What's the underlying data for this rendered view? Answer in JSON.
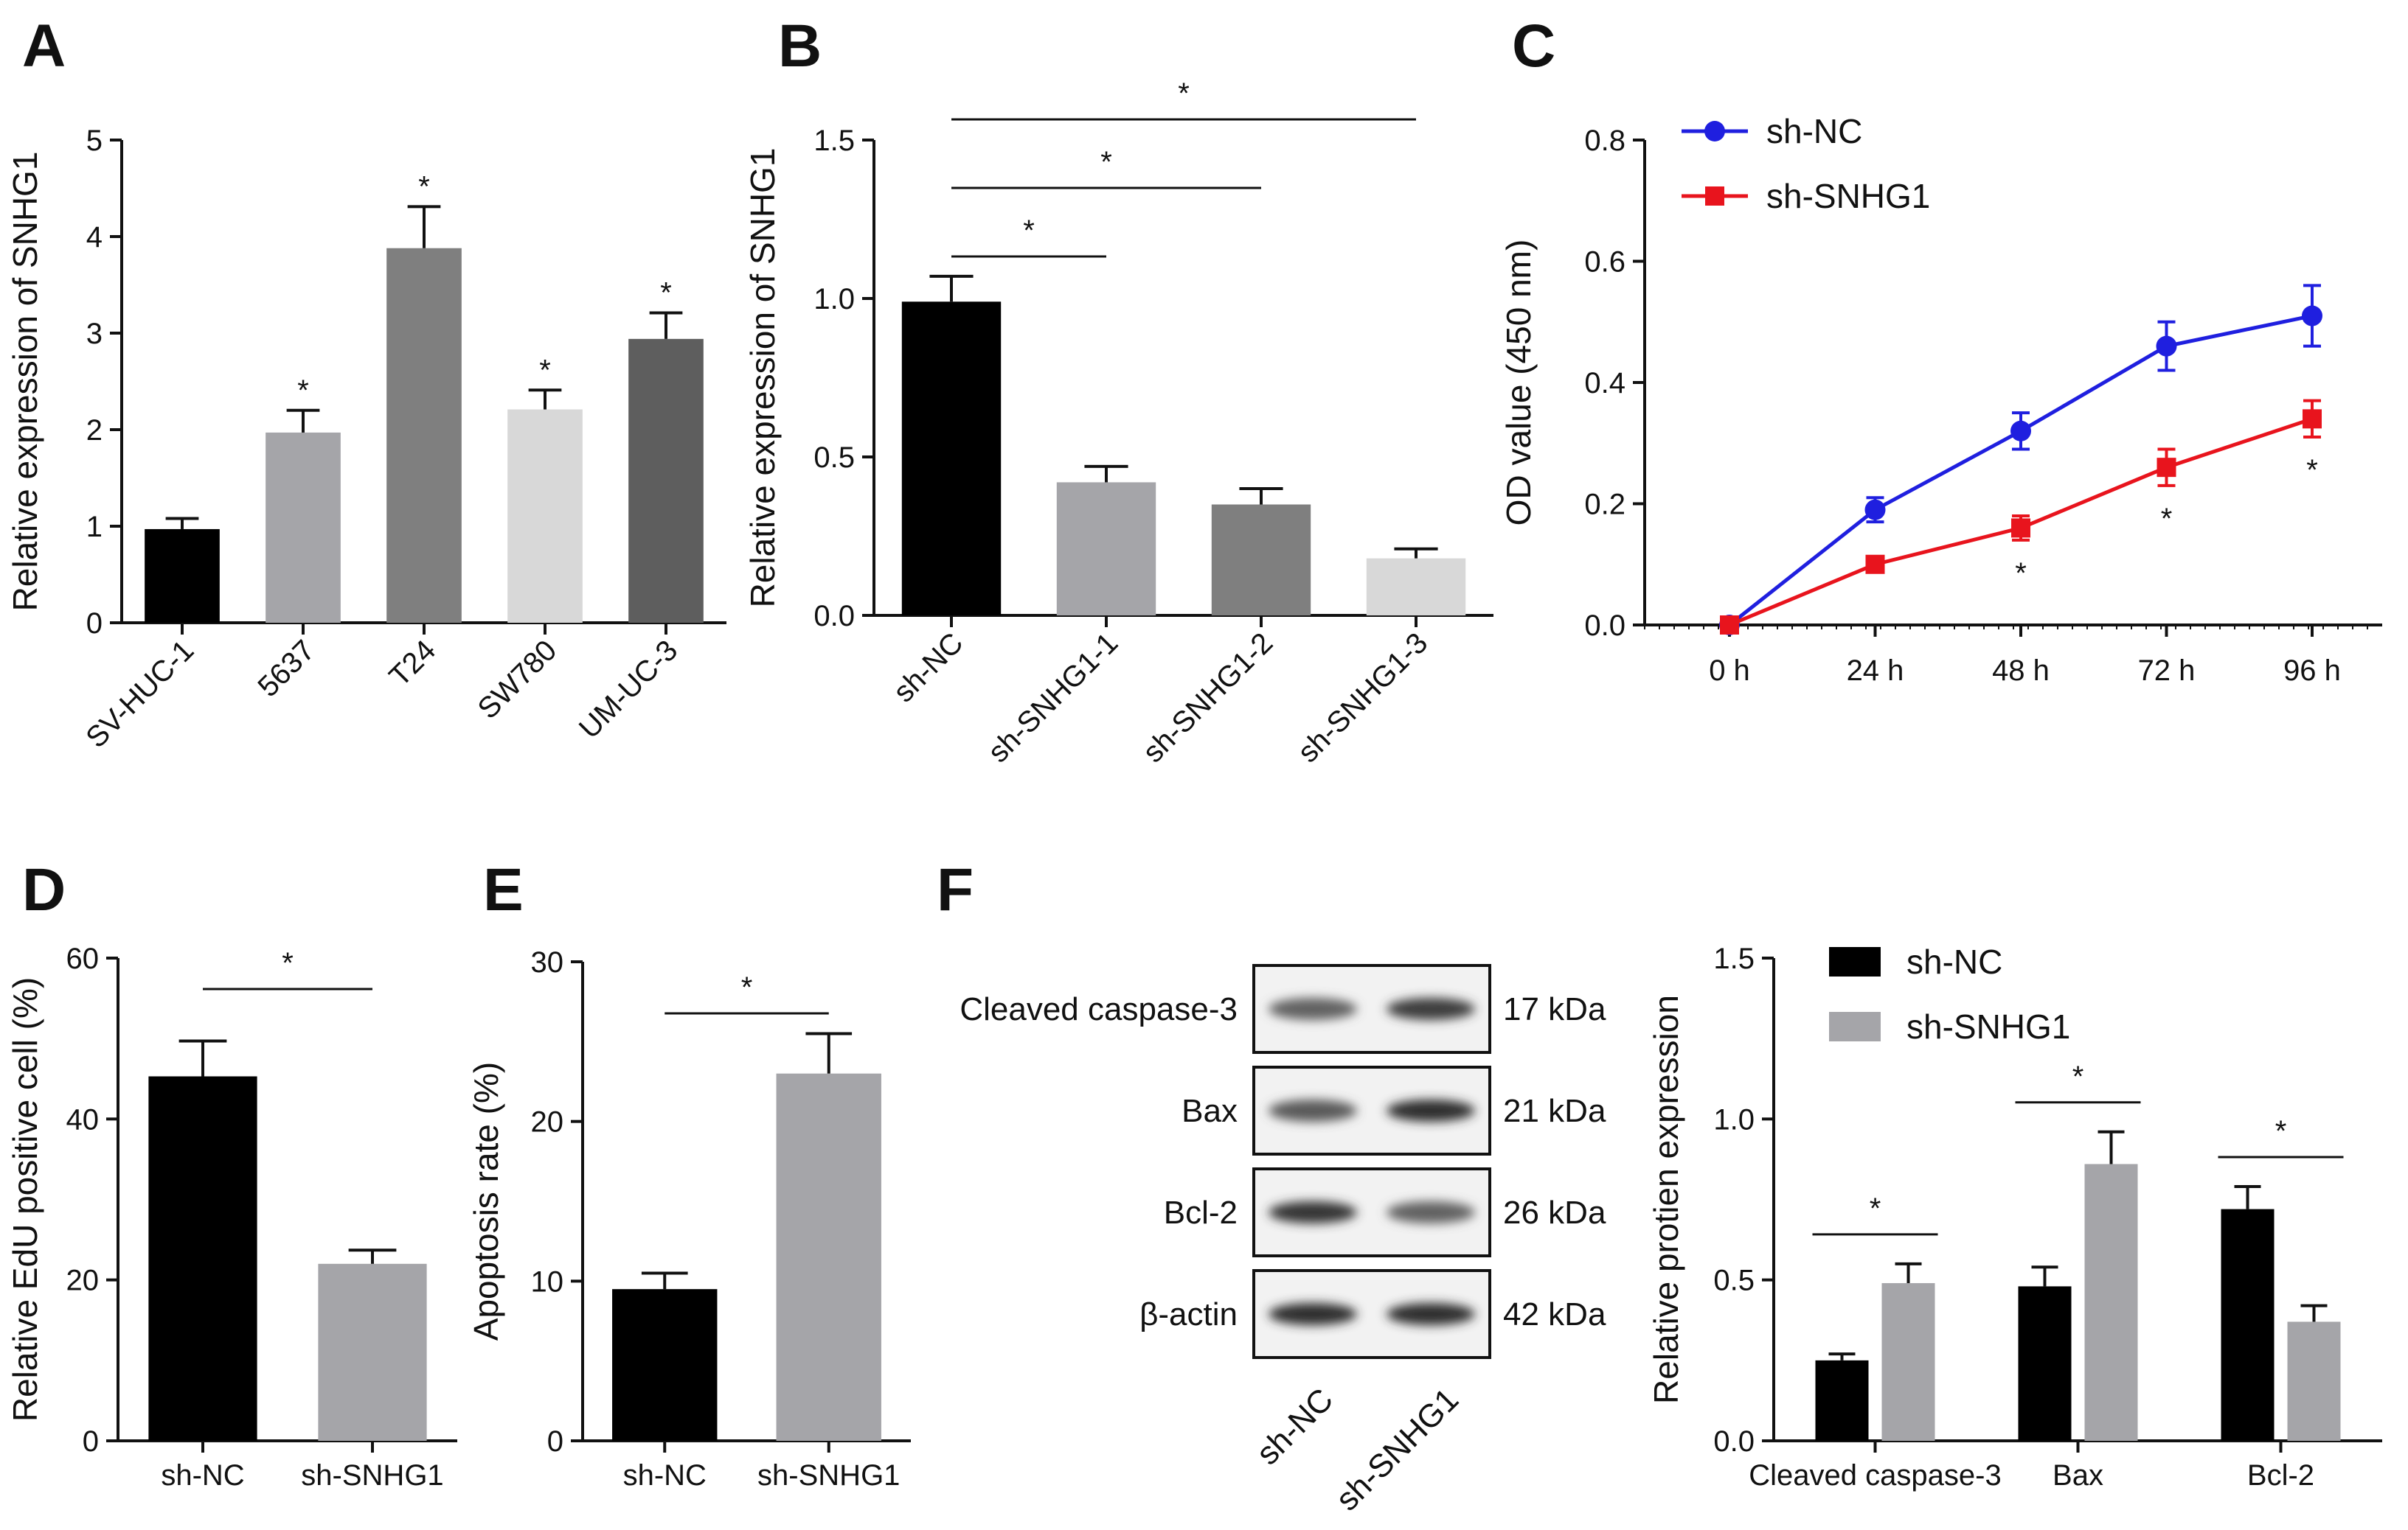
{
  "chart_data": [
    {
      "panel": "A",
      "type": "bar",
      "ylabel": "Relative expression of SNHG1",
      "ylim": [
        0,
        5
      ],
      "yticks": [
        "0",
        "1",
        "2",
        "3",
        "4",
        "5"
      ],
      "categories": [
        "SV-HUC-1",
        "5637",
        "T24",
        "SW780",
        "UM-UC-3"
      ],
      "values": [
        0.97,
        1.97,
        3.88,
        2.21,
        2.94
      ],
      "errors": [
        0.11,
        0.23,
        0.43,
        0.2,
        0.27
      ],
      "colors": [
        "#000000",
        "#a5a5a9",
        "#7f7f7f",
        "#d8d8d8",
        "#5e5e5e"
      ],
      "significance": [
        "",
        "*",
        "*",
        "*",
        "*"
      ]
    },
    {
      "panel": "B",
      "type": "bar",
      "ylabel": "Relative expression of SNHG1",
      "ylim": [
        0,
        1.5
      ],
      "yticks": [
        "0.0",
        "0.5",
        "1.0",
        "1.5"
      ],
      "categories": [
        "sh-NC",
        "sh-SNHG1-1",
        "sh-SNHG1-2",
        "sh-SNHG1-3"
      ],
      "values": [
        0.99,
        0.42,
        0.35,
        0.18
      ],
      "errors": [
        0.08,
        0.05,
        0.05,
        0.03
      ],
      "colors": [
        "#000000",
        "#a5a5a9",
        "#7f7f7f",
        "#d8d8d8"
      ],
      "comparisons": [
        {
          "from": 0,
          "to": 1,
          "label": "*"
        },
        {
          "from": 0,
          "to": 2,
          "label": "*"
        },
        {
          "from": 0,
          "to": 3,
          "label": "*"
        }
      ]
    },
    {
      "panel": "C",
      "type": "line",
      "ylabel": "OD value (450 nm)",
      "ylim": [
        0,
        0.8
      ],
      "yticks": [
        "0.0",
        "0.2",
        "0.4",
        "0.6",
        "0.8"
      ],
      "categories": [
        "0 h",
        "24 h",
        "48 h",
        "72 h",
        "96 h"
      ],
      "series": [
        {
          "name": "sh-NC",
          "color": "#1f1fdf",
          "marker": "circle",
          "values": [
            0.0,
            0.19,
            0.32,
            0.46,
            0.51
          ],
          "errors": [
            0.005,
            0.02,
            0.03,
            0.04,
            0.05
          ]
        },
        {
          "name": "sh-SNHG1",
          "color": "#e8141d",
          "marker": "square",
          "values": [
            0.0,
            0.1,
            0.16,
            0.26,
            0.34
          ],
          "errors": [
            0.005,
            0.01,
            0.02,
            0.03,
            0.03
          ]
        }
      ],
      "significance": [
        "",
        "",
        "*",
        "*",
        "*"
      ],
      "legend": "top-left"
    },
    {
      "panel": "D",
      "type": "bar",
      "ylabel": "Relative EdU positive cell (%)",
      "ylim": [
        0,
        60
      ],
      "yticks": [
        "0",
        "20",
        "40",
        "60"
      ],
      "categories": [
        "sh-NC",
        "sh-SNHG1"
      ],
      "values": [
        45.3,
        22.0
      ],
      "errors": [
        4.4,
        1.7
      ],
      "colors": [
        "#000000",
        "#a5a5a9"
      ],
      "comparisons": [
        {
          "from": 0,
          "to": 1,
          "label": "*"
        }
      ]
    },
    {
      "panel": "E",
      "type": "bar",
      "ylabel": "Apoptosis rate (%)",
      "ylim": [
        0,
        30
      ],
      "yticks": [
        "0",
        "10",
        "20",
        "30"
      ],
      "categories": [
        "sh-NC",
        "sh-SNHG1"
      ],
      "values": [
        9.5,
        23.0
      ],
      "errors": [
        1.0,
        2.5
      ],
      "colors": [
        "#000000",
        "#a5a5a9"
      ],
      "comparisons": [
        {
          "from": 0,
          "to": 1,
          "label": "*"
        }
      ]
    },
    {
      "panel": "F",
      "type": "bar",
      "ylabel": "Relative protien expression",
      "ylim": [
        0,
        1.5
      ],
      "yticks": [
        "0.0",
        "0.5",
        "1.0",
        "1.5"
      ],
      "categories": [
        "Cleaved caspase-3",
        "Bax",
        "Bcl-2"
      ],
      "series": [
        {
          "name": "sh-NC",
          "color": "#000000",
          "values": [
            0.25,
            0.48,
            0.72
          ],
          "errors": [
            0.02,
            0.06,
            0.07
          ]
        },
        {
          "name": "sh-SNHG1",
          "color": "#a5a5a9",
          "values": [
            0.49,
            0.86,
            0.37
          ],
          "errors": [
            0.06,
            0.1,
            0.05
          ]
        }
      ],
      "significance": [
        "*",
        "*",
        "*"
      ],
      "legend": "top-left"
    }
  ],
  "panels": {
    "a": "A",
    "b": "B",
    "c": "C",
    "d": "D",
    "e": "E",
    "f": "F"
  },
  "western_blot": {
    "rows": [
      {
        "protein": "Cleaved caspase-3",
        "size": "17 kDa",
        "intensity": [
          0.55,
          0.8
        ]
      },
      {
        "protein": "Bax",
        "size": "21 kDa",
        "intensity": [
          0.6,
          0.9
        ]
      },
      {
        "protein": "Bcl-2",
        "size": "26 kDa",
        "intensity": [
          0.85,
          0.55
        ]
      },
      {
        "protein": "β-actin",
        "size": "42 kDa",
        "intensity": [
          0.9,
          0.9
        ]
      }
    ],
    "lanes": [
      "sh-NC",
      "sh-SNHG1"
    ]
  }
}
